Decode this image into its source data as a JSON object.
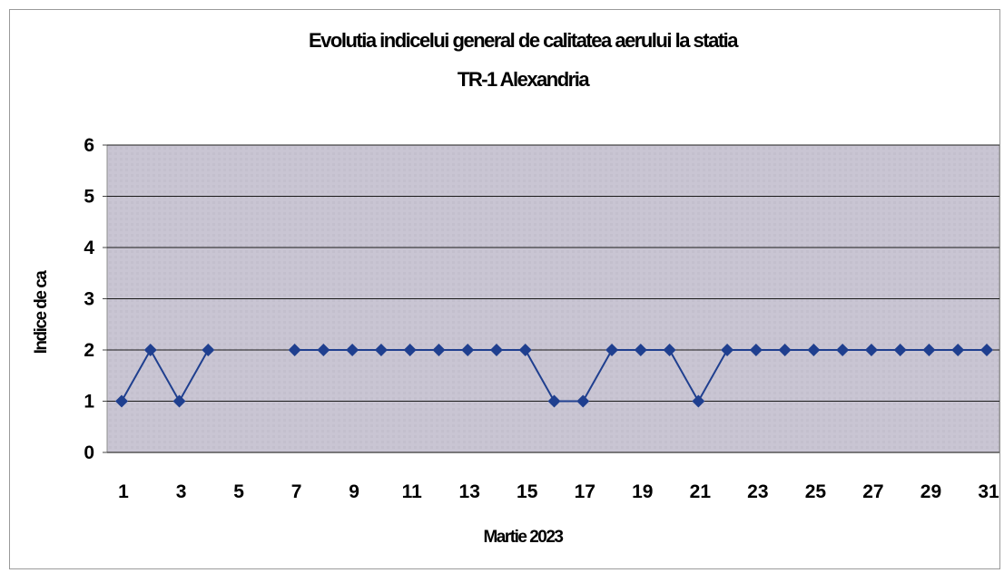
{
  "chart_data": {
    "type": "line",
    "title": "Evolutia indicelui general de calitatea aerului la statia",
    "subtitle": "TR-1 Alexandria",
    "xlabel": "Martie 2023",
    "ylabel": "Indice de ca",
    "ylim": [
      0,
      6
    ],
    "yticks": [
      "0",
      "1",
      "2",
      "3",
      "4",
      "5",
      "6"
    ],
    "xlim": [
      1,
      31
    ],
    "xticks": [
      "1",
      "3",
      "5",
      "7",
      "9",
      "11",
      "13",
      "15",
      "17",
      "19",
      "21",
      "23",
      "25",
      "27",
      "29",
      "31"
    ],
    "grid": true,
    "legend": "none",
    "colors": {
      "line": "#1f3f8f",
      "plot_bg": "#c9c5d3",
      "grid": "#1a1a1a"
    },
    "series": [
      {
        "x": [
          1,
          2,
          3,
          4,
          5,
          6,
          7,
          8,
          9,
          10,
          11,
          12,
          13,
          14,
          15,
          16,
          17,
          18,
          19,
          20,
          21,
          22,
          23,
          24,
          25,
          26,
          27,
          28,
          29,
          30,
          31
        ],
        "values": [
          1,
          2,
          1,
          2,
          null,
          null,
          2,
          2,
          2,
          2,
          2,
          2,
          2,
          2,
          2,
          1,
          1,
          2,
          2,
          2,
          1,
          2,
          2,
          2,
          2,
          2,
          2,
          2,
          2,
          2,
          2
        ]
      }
    ]
  }
}
